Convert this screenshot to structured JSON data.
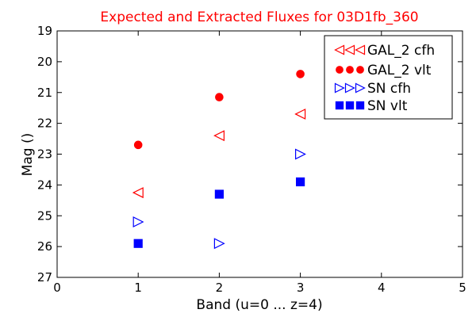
{
  "chart_data": {
    "type": "scatter",
    "title": "Expected and Extracted Fluxes for 03D1fb_360",
    "xlabel": "Band (u=0 ... z=4)",
    "ylabel": "Mag ()",
    "xlim": [
      0,
      5
    ],
    "ylim": [
      27,
      19
    ],
    "y_inverted": true,
    "x_ticks": [
      "0",
      "1",
      "2",
      "3",
      "4",
      "5"
    ],
    "y_ticks": [
      "19",
      "20",
      "21",
      "22",
      "23",
      "24",
      "25",
      "26",
      "27"
    ],
    "grid": false,
    "legend_position": "top-right",
    "series": [
      {
        "name": "GAL_2 cfh",
        "marker": "triangle-left",
        "color": "#ff0000",
        "filled": false,
        "x": [
          1,
          2,
          3
        ],
        "y": [
          24.25,
          22.4,
          21.7
        ]
      },
      {
        "name": "GAL_2 vlt",
        "marker": "circle",
        "color": "#ff0000",
        "filled": true,
        "x": [
          1,
          2,
          3
        ],
        "y": [
          22.7,
          21.15,
          20.4
        ]
      },
      {
        "name": "SN cfh",
        "marker": "triangle-right",
        "color": "#0000ff",
        "filled": false,
        "x": [
          1,
          2,
          3
        ],
        "y": [
          25.2,
          25.9,
          23.0
        ]
      },
      {
        "name": "SN vlt",
        "marker": "square",
        "color": "#0000ff",
        "filled": true,
        "x": [
          1,
          2,
          3
        ],
        "y": [
          25.9,
          24.3,
          23.9
        ]
      }
    ]
  }
}
